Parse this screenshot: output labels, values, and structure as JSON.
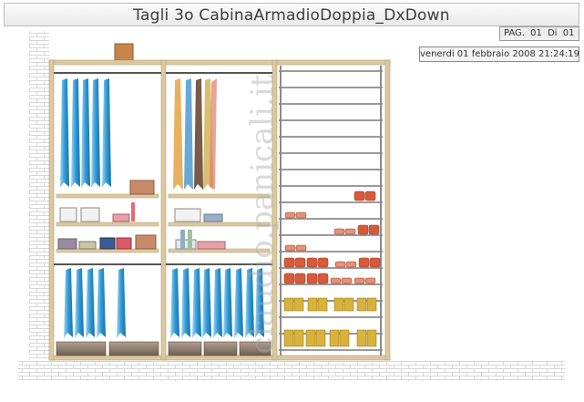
{
  "header": {
    "title": "Tagli      3o CabinaArmadioDoppia_DxDown"
  },
  "pagination": {
    "pag_label": "PAG.",
    "current": "01",
    "of_label": "Di",
    "total": "01"
  },
  "timestamp": "venerdi 01 febbraio 2008 21:24:19",
  "watermark": "claudio.panicali.it",
  "colors": {
    "wood": "#dcc8a0",
    "shirt_blue": "#3aa4dc",
    "bar_gray": "#8c8c8c",
    "shoe_yellow": "#d8b23a",
    "shoe_red": "#d85a3a"
  }
}
